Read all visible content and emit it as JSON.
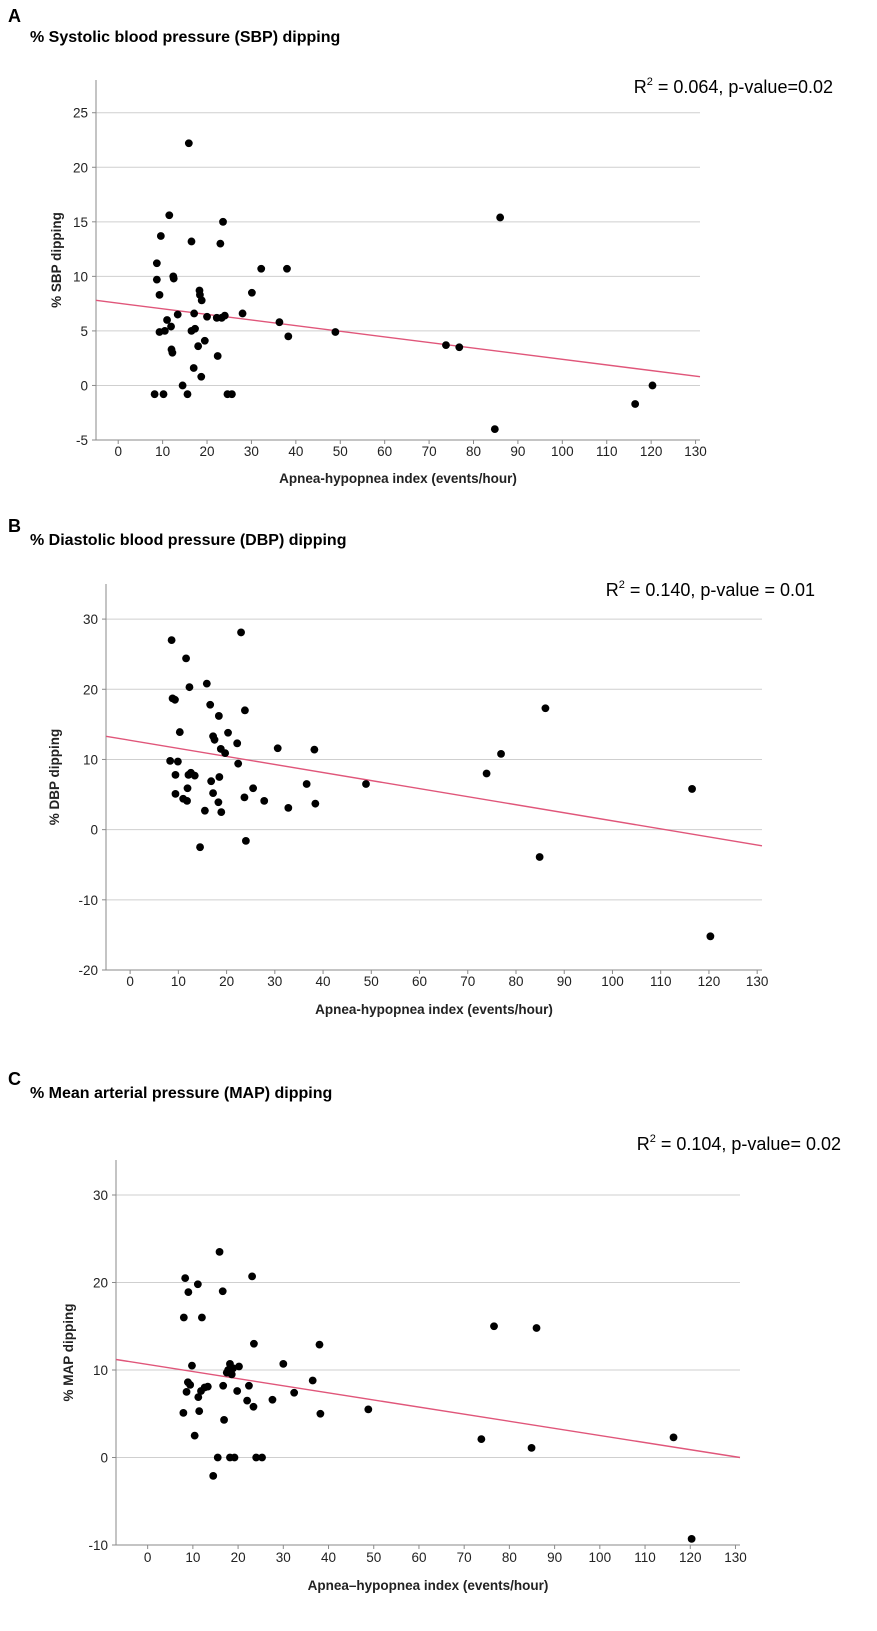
{
  "chart_data": [
    {
      "type": "scatter",
      "panel_label": "A",
      "title": "% Systolic blood pressure (SBP) dipping",
      "stat_r": "R",
      "stat_sup": "2",
      "stat_rest": " = 0.064, p-value=0.02",
      "xlabel": "Apnea-hypopnea index (events/hour)",
      "ylabel": "% SBP dipping",
      "xlim": [
        -5,
        131
      ],
      "ylim": [
        -5,
        28
      ],
      "xticks": [
        0,
        10,
        20,
        30,
        40,
        50,
        60,
        70,
        80,
        90,
        100,
        110,
        120,
        130
      ],
      "yticks": [
        -5,
        0,
        5,
        10,
        15,
        20,
        25
      ],
      "grid": "horizontal",
      "fit_line": {
        "x": [
          -5,
          131
        ],
        "y": [
          7.8,
          0.8
        ]
      },
      "points": [
        [
          8.2,
          -0.8
        ],
        [
          10.2,
          -0.8
        ],
        [
          8.7,
          11.2
        ],
        [
          8.7,
          9.7
        ],
        [
          9.3,
          8.3
        ],
        [
          9.6,
          13.7
        ],
        [
          9.3,
          4.9
        ],
        [
          10.5,
          5.0
        ],
        [
          11.0,
          6.0
        ],
        [
          11.5,
          15.6
        ],
        [
          11.9,
          5.4
        ],
        [
          12.0,
          3.3
        ],
        [
          12.2,
          3.0
        ],
        [
          12.4,
          10.0
        ],
        [
          12.5,
          9.8
        ],
        [
          13.4,
          6.5
        ],
        [
          14.5,
          0.0
        ],
        [
          15.6,
          -0.8
        ],
        [
          15.9,
          22.2
        ],
        [
          16.5,
          13.2
        ],
        [
          16.5,
          5.0
        ],
        [
          17.0,
          1.6
        ],
        [
          17.1,
          6.6
        ],
        [
          17.3,
          5.2
        ],
        [
          18.0,
          3.6
        ],
        [
          18.3,
          8.7
        ],
        [
          18.4,
          8.3
        ],
        [
          18.8,
          7.8
        ],
        [
          18.7,
          0.8
        ],
        [
          19.5,
          4.1
        ],
        [
          20.0,
          6.3
        ],
        [
          22.2,
          6.2
        ],
        [
          22.4,
          2.7
        ],
        [
          23.0,
          13.0
        ],
        [
          23.3,
          6.2
        ],
        [
          23.6,
          15.0
        ],
        [
          24.0,
          6.4
        ],
        [
          24.6,
          -0.8
        ],
        [
          25.6,
          -0.8
        ],
        [
          28.0,
          6.6
        ],
        [
          30.1,
          8.5
        ],
        [
          32.2,
          10.7
        ],
        [
          36.3,
          5.8
        ],
        [
          38.0,
          10.7
        ],
        [
          38.3,
          4.5
        ],
        [
          48.9,
          4.9
        ],
        [
          73.8,
          3.7
        ],
        [
          76.8,
          3.5
        ],
        [
          84.8,
          -4.0
        ],
        [
          86.0,
          15.4
        ],
        [
          116.4,
          -1.7
        ],
        [
          120.3,
          0.0
        ]
      ]
    },
    {
      "type": "scatter",
      "panel_label": "B",
      "title": "% Diastolic blood pressure (DBP) dipping",
      "stat_r": "R",
      "stat_sup": "2",
      "stat_rest": " = 0.140, p-value = 0.01",
      "xlabel": "Apnea-hypopnea index (events/hour)",
      "ylabel": "% DBP dipping",
      "xlim": [
        -5,
        131
      ],
      "ylim": [
        -20,
        35
      ],
      "xticks": [
        0,
        10,
        20,
        30,
        40,
        50,
        60,
        70,
        80,
        90,
        100,
        110,
        120,
        130
      ],
      "yticks": [
        -20,
        -10,
        0,
        10,
        20,
        30
      ],
      "grid": "horizontal",
      "fit_line": {
        "x": [
          -5,
          131
        ],
        "y": [
          13.3,
          -2.3
        ]
      },
      "points": [
        [
          8.3,
          9.8
        ],
        [
          8.6,
          27.0
        ],
        [
          8.8,
          18.7
        ],
        [
          9.3,
          18.5
        ],
        [
          9.4,
          7.8
        ],
        [
          9.4,
          5.1
        ],
        [
          9.9,
          9.7
        ],
        [
          10.3,
          13.9
        ],
        [
          11.0,
          4.4
        ],
        [
          11.6,
          24.4
        ],
        [
          11.8,
          4.1
        ],
        [
          11.9,
          5.9
        ],
        [
          12.1,
          7.8
        ],
        [
          12.3,
          20.3
        ],
        [
          12.6,
          8.1
        ],
        [
          13.4,
          7.7
        ],
        [
          14.5,
          -2.5
        ],
        [
          15.5,
          2.7
        ],
        [
          15.9,
          20.8
        ],
        [
          16.6,
          17.8
        ],
        [
          16.8,
          6.9
        ],
        [
          17.2,
          5.2
        ],
        [
          17.2,
          13.3
        ],
        [
          17.5,
          12.8
        ],
        [
          18.3,
          3.9
        ],
        [
          18.4,
          16.2
        ],
        [
          18.5,
          7.5
        ],
        [
          18.8,
          11.5
        ],
        [
          18.9,
          2.5
        ],
        [
          19.7,
          10.9
        ],
        [
          20.3,
          13.8
        ],
        [
          22.2,
          12.3
        ],
        [
          22.4,
          9.4
        ],
        [
          23.0,
          28.1
        ],
        [
          23.7,
          4.6
        ],
        [
          23.8,
          17.0
        ],
        [
          24.0,
          -1.6
        ],
        [
          25.5,
          5.9
        ],
        [
          27.8,
          4.1
        ],
        [
          30.6,
          11.6
        ],
        [
          32.8,
          3.1
        ],
        [
          36.6,
          6.5
        ],
        [
          38.2,
          11.4
        ],
        [
          38.4,
          3.7
        ],
        [
          48.9,
          6.5
        ],
        [
          73.9,
          8.0
        ],
        [
          76.9,
          10.8
        ],
        [
          84.9,
          -3.9
        ],
        [
          86.1,
          17.3
        ],
        [
          116.5,
          5.8
        ],
        [
          120.3,
          -15.2
        ]
      ]
    },
    {
      "type": "scatter",
      "panel_label": "C",
      "title": "% Mean arterial pressure (MAP) dipping",
      "stat_r": "R",
      "stat_sup": "2",
      "stat_rest": " = 0.104, p-value= 0.02",
      "xlabel": "Apnea–hypopnea index (events/hour)",
      "ylabel": "% MAP dipping",
      "xlim": [
        -7,
        131
      ],
      "ylim": [
        -10,
        34
      ],
      "xticks": [
        0,
        10,
        20,
        30,
        40,
        50,
        60,
        70,
        80,
        90,
        100,
        110,
        120,
        130
      ],
      "yticks": [
        -10,
        0,
        10,
        20,
        30
      ],
      "grid": "horizontal",
      "fit_line": {
        "x": [
          -7,
          131
        ],
        "y": [
          11.2,
          0.0
        ]
      },
      "points": [
        [
          7.9,
          5.1
        ],
        [
          8.0,
          16.0
        ],
        [
          8.3,
          20.5
        ],
        [
          8.6,
          7.5
        ],
        [
          8.9,
          8.6
        ],
        [
          9.0,
          18.9
        ],
        [
          9.4,
          8.3
        ],
        [
          9.8,
          10.5
        ],
        [
          10.4,
          2.5
        ],
        [
          11.1,
          19.8
        ],
        [
          11.2,
          6.9
        ],
        [
          11.4,
          5.3
        ],
        [
          11.8,
          7.6
        ],
        [
          12.0,
          16.0
        ],
        [
          12.6,
          8.0
        ],
        [
          13.3,
          8.1
        ],
        [
          14.5,
          -2.1
        ],
        [
          15.5,
          0.0
        ],
        [
          15.9,
          23.5
        ],
        [
          16.6,
          19.0
        ],
        [
          16.7,
          8.2
        ],
        [
          16.9,
          4.3
        ],
        [
          17.5,
          9.7
        ],
        [
          17.8,
          10.0
        ],
        [
          18.2,
          10.7
        ],
        [
          18.2,
          0.0
        ],
        [
          18.6,
          9.5
        ],
        [
          18.9,
          10.2
        ],
        [
          19.2,
          0.0
        ],
        [
          19.8,
          7.6
        ],
        [
          20.2,
          10.4
        ],
        [
          22.0,
          6.5
        ],
        [
          22.4,
          8.2
        ],
        [
          23.1,
          20.7
        ],
        [
          23.4,
          5.8
        ],
        [
          23.5,
          13.0
        ],
        [
          24.0,
          0.0
        ],
        [
          25.3,
          0.0
        ],
        [
          27.6,
          6.6
        ],
        [
          30.0,
          10.7
        ],
        [
          32.4,
          7.4
        ],
        [
          36.5,
          8.8
        ],
        [
          38.0,
          12.9
        ],
        [
          38.2,
          5.0
        ],
        [
          48.8,
          5.5
        ],
        [
          73.8,
          2.1
        ],
        [
          76.6,
          15.0
        ],
        [
          84.9,
          1.1
        ],
        [
          86.0,
          14.8
        ],
        [
          116.3,
          2.3
        ],
        [
          120.3,
          -9.3
        ]
      ]
    }
  ]
}
